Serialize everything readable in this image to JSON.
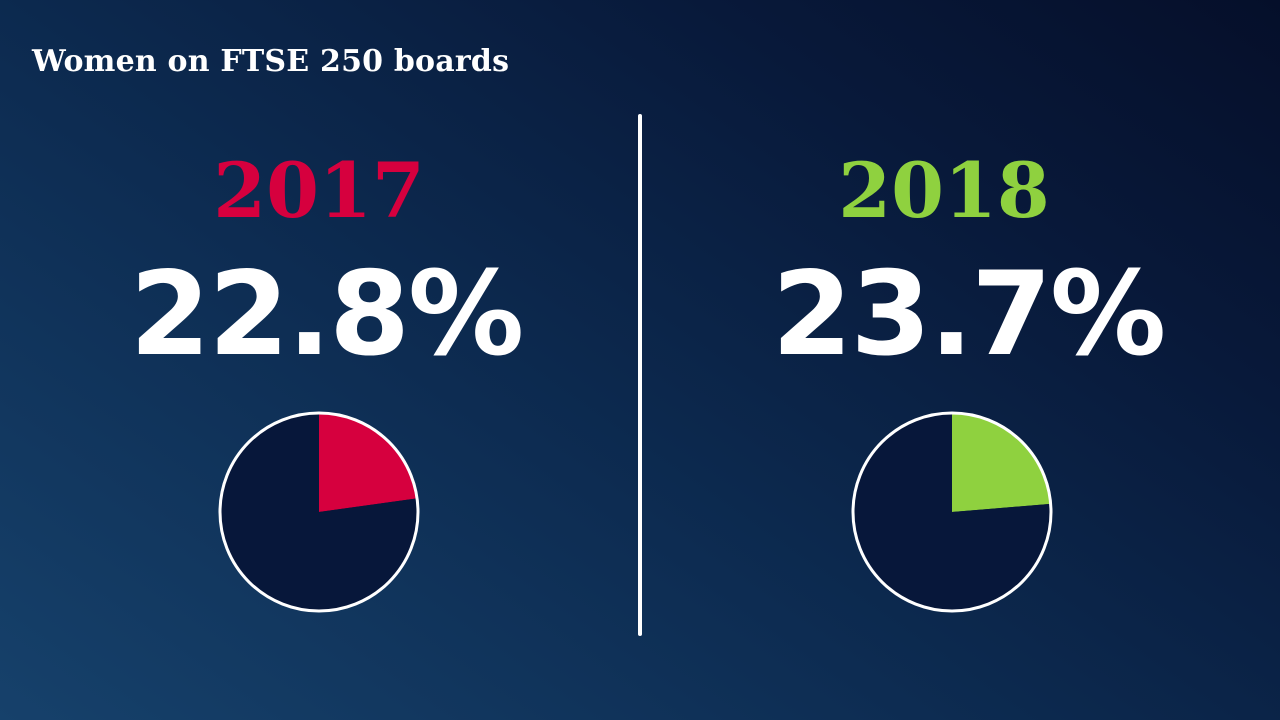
{
  "title": "Women on FTSE 250 boards",
  "colors": {
    "y2017": "#d6003e",
    "y2018": "#8fd13f",
    "pie_outline": "#ffffff",
    "pie_remainder": "#07173a"
  },
  "chart_data": [
    {
      "type": "pie",
      "title": "2017",
      "value_label": "22.8%",
      "values": [
        22.8,
        77.2
      ],
      "categories": [
        "",
        ""
      ],
      "highlight_color": "#d6003e"
    },
    {
      "type": "pie",
      "title": "2018",
      "value_label": "23.7%",
      "values": [
        23.7,
        76.3
      ],
      "categories": [
        "",
        ""
      ],
      "highlight_color": "#8fd13f"
    }
  ]
}
